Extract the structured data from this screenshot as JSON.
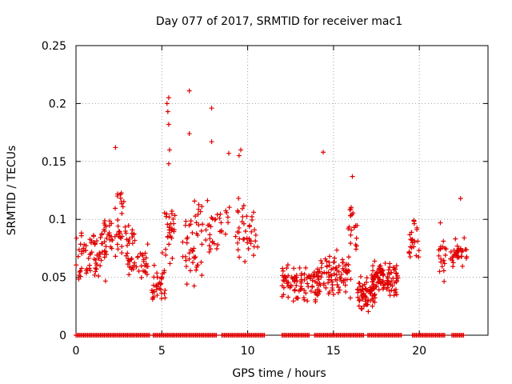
{
  "chart_data": {
    "type": "scatter",
    "title": "Day 077 of 2017, SRMTID for receiver mac1",
    "xlabel": "GPS time / hours",
    "ylabel": "SRMTID / TECUs",
    "xlim": [
      0,
      24
    ],
    "ylim": [
      0,
      0.25
    ],
    "xticks": [
      "0",
      "5",
      "10",
      "15",
      "20"
    ],
    "yticks": [
      "0",
      "0.05",
      "0.1",
      "0.15",
      "0.2",
      "0.25"
    ],
    "grid": true,
    "marker": "+",
    "color": "#e00000",
    "series": [
      {
        "name": "SRMTID",
        "clusters": [
          {
            "x_range": [
              0.0,
              1.8
            ],
            "y_center": 0.07,
            "y_spread": 0.02,
            "n": 70
          },
          {
            "x_range": [
              1.5,
              3.5
            ],
            "y_center": 0.085,
            "y_spread": 0.018,
            "n": 55
          },
          {
            "x_range": [
              2.2,
              2.9
            ],
            "y_center": 0.115,
            "y_spread": 0.01,
            "n": 12
          },
          {
            "x_range": [
              3.0,
              4.2
            ],
            "y_center": 0.062,
            "y_spread": 0.012,
            "n": 35
          },
          {
            "x_range": [
              4.4,
              5.2
            ],
            "y_center": 0.045,
            "y_spread": 0.015,
            "n": 35
          },
          {
            "x_range": [
              5.0,
              5.8
            ],
            "y_center": 0.08,
            "y_spread": 0.03,
            "n": 30
          },
          {
            "x_range": [
              6.2,
              7.4
            ],
            "y_center": 0.08,
            "y_spread": 0.03,
            "n": 45
          },
          {
            "x_range": [
              7.3,
              9.0
            ],
            "y_center": 0.095,
            "y_spread": 0.02,
            "n": 35
          },
          {
            "x_range": [
              9.3,
              10.6
            ],
            "y_center": 0.09,
            "y_spread": 0.022,
            "n": 40
          },
          {
            "x_range": [
              12.0,
              14.2
            ],
            "y_center": 0.045,
            "y_spread": 0.015,
            "n": 90
          },
          {
            "x_range": [
              14.0,
              16.0
            ],
            "y_center": 0.05,
            "y_spread": 0.016,
            "n": 90
          },
          {
            "x_range": [
              15.8,
              16.4
            ],
            "y_center": 0.09,
            "y_spread": 0.02,
            "n": 20
          },
          {
            "x_range": [
              16.4,
              17.5
            ],
            "y_center": 0.035,
            "y_spread": 0.012,
            "n": 70
          },
          {
            "x_range": [
              17.2,
              18.8
            ],
            "y_center": 0.05,
            "y_spread": 0.012,
            "n": 100
          },
          {
            "x_range": [
              19.4,
              20.0
            ],
            "y_center": 0.08,
            "y_spread": 0.018,
            "n": 25
          },
          {
            "x_range": [
              21.1,
              21.6
            ],
            "y_center": 0.07,
            "y_spread": 0.025,
            "n": 20
          },
          {
            "x_range": [
              21.8,
              22.8
            ],
            "y_center": 0.07,
            "y_spread": 0.012,
            "n": 35
          }
        ],
        "outliers": [
          {
            "x": 2.3,
            "y": 0.162
          },
          {
            "x": 5.3,
            "y": 0.2
          },
          {
            "x": 5.4,
            "y": 0.205
          },
          {
            "x": 5.35,
            "y": 0.193
          },
          {
            "x": 5.4,
            "y": 0.182
          },
          {
            "x": 5.45,
            "y": 0.16
          },
          {
            "x": 5.4,
            "y": 0.148
          },
          {
            "x": 6.6,
            "y": 0.211
          },
          {
            "x": 6.6,
            "y": 0.174
          },
          {
            "x": 7.9,
            "y": 0.196
          },
          {
            "x": 7.9,
            "y": 0.167
          },
          {
            "x": 8.9,
            "y": 0.157
          },
          {
            "x": 9.6,
            "y": 0.16
          },
          {
            "x": 9.5,
            "y": 0.155
          },
          {
            "x": 14.4,
            "y": 0.158
          },
          {
            "x": 16.1,
            "y": 0.137
          },
          {
            "x": 22.4,
            "y": 0.118
          }
        ],
        "zero_segments": [
          [
            0.0,
            4.3
          ],
          [
            4.5,
            8.2
          ],
          [
            8.5,
            11.0
          ],
          [
            12.0,
            13.6
          ],
          [
            13.9,
            16.8
          ],
          [
            17.0,
            19.0
          ],
          [
            19.6,
            21.5
          ],
          [
            21.9,
            22.6
          ]
        ]
      }
    ]
  }
}
